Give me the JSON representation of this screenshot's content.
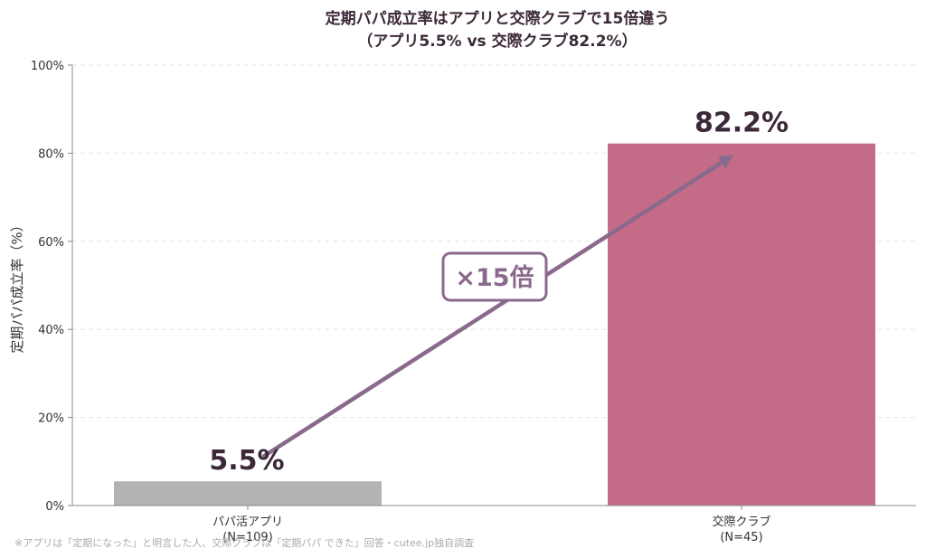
{
  "chart_data": {
    "type": "bar",
    "title": "定期パパ成立率はアプリと交際クラブで15倍違う",
    "subtitle": "（アプリ5.5% vs 交際クラブ82.2%）",
    "ylabel": "定期パパ成立率（%）",
    "ylim": [
      0,
      100
    ],
    "yticks": [
      0,
      20,
      40,
      60,
      80,
      100
    ],
    "ytick_labels": [
      "0%",
      "20%",
      "40%",
      "60%",
      "80%",
      "100%"
    ],
    "grid": true,
    "categories": [
      "パパ活アプリ",
      "交際クラブ"
    ],
    "category_sublabels": [
      "(N=109)",
      "(N=45)"
    ],
    "values": [
      5.5,
      82.2
    ],
    "value_labels": [
      "5.5%",
      "82.2%"
    ],
    "bar_colors": [
      "#b3b3b3",
      "#c46b87"
    ],
    "annotation": {
      "text": "×15倍",
      "color": "#8a6a8c"
    },
    "footnote": "※アプリは「定期になった」と明言した人、交際クラブは「定期パパ できた」回答・cutee.jp独自調査"
  }
}
